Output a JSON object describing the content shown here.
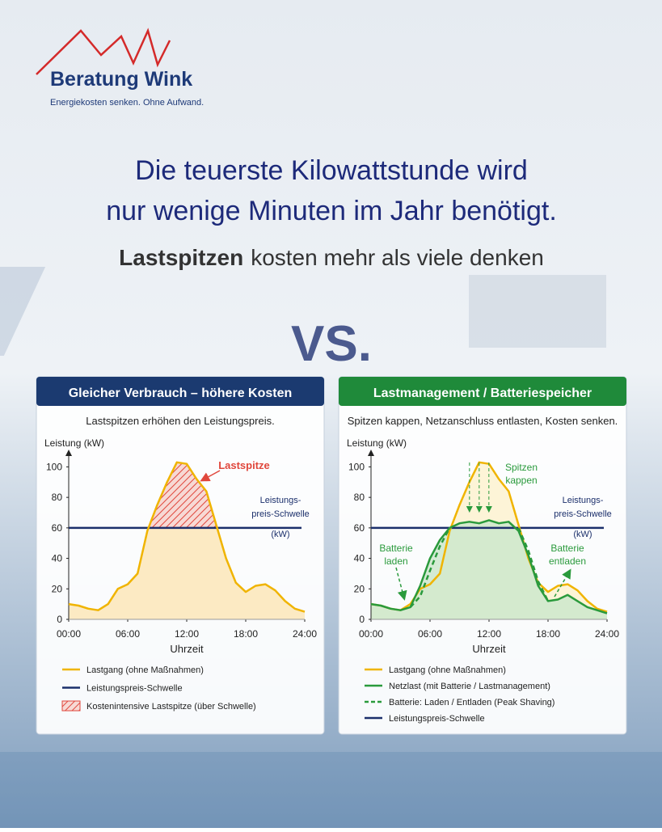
{
  "header": {
    "logo": "Beratung Wink",
    "tagline": "Energiekosten senken. Ohne Aufwand.",
    "headline": [
      "Die teuerste Kilowattstunde wird",
      "nur wenige Minuten im Jahr benötigt."
    ],
    "subheadline": {
      "bold": "Lastspitzen",
      "rest": "kosten mehr als viele denken"
    },
    "versus": "VS."
  },
  "chart_data": [
    {
      "type": "line",
      "title": "Gleicher Verbrauch – höhere Kosten",
      "subtitle": "Lastspitzen erhöhen den Leistungspreis.",
      "header_color": "#1b3a70",
      "y_label": "Leistung (kW)",
      "x_label": "Uhrzeit",
      "x": [
        0,
        1,
        2,
        3,
        4,
        5,
        6,
        7,
        8,
        9,
        10,
        11,
        12,
        13,
        14,
        15,
        16,
        17,
        18,
        19,
        20,
        21,
        22,
        23,
        24
      ],
      "xlim": [
        0,
        24
      ],
      "xticks": [
        {
          "value": 0,
          "label": "00:00"
        },
        {
          "value": 6,
          "label": "06:00"
        },
        {
          "value": 12,
          "label": "12:00"
        },
        {
          "value": 18,
          "label": "18:00"
        },
        {
          "value": 24,
          "label": "24:00"
        }
      ],
      "ylim": [
        0,
        105
      ],
      "yticks": [
        0,
        20,
        40,
        60,
        80,
        100
      ],
      "series": [
        {
          "name": "Lastgang (ohne Maßnahmen)",
          "color": "#f0b400",
          "fill": "#fbe6b8",
          "values": [
            10,
            9,
            7,
            6,
            10,
            20,
            23,
            30,
            58,
            75,
            90,
            103,
            102,
            92,
            84,
            62,
            40,
            24,
            18,
            22,
            23,
            19,
            12,
            7,
            5
          ]
        }
      ],
      "threshold": {
        "name": "Leistungspreis-Schwelle",
        "value": 60,
        "color": "#1b2f6b",
        "label": [
          "Leistungs-",
          "preis-Schwelle",
          "(kW)"
        ]
      },
      "peak_area": {
        "name": "Kostenintensive Lastspitze (über Schwelle)",
        "color": "#e0473c"
      },
      "annotations": [
        [
          "Lastspitze"
        ]
      ]
    },
    {
      "type": "line",
      "title": "Lastmanagement / Batteriespeicher",
      "subtitle": "Spitzen kappen, Netzanschluss entlasten, Kosten senken.",
      "header_color": "#1f8a3a",
      "y_label": "Leistung (kW)",
      "x_label": "Uhrzeit",
      "x": [
        0,
        1,
        2,
        3,
        4,
        5,
        6,
        7,
        8,
        9,
        10,
        11,
        12,
        13,
        14,
        15,
        16,
        17,
        18,
        19,
        20,
        21,
        22,
        23,
        24
      ],
      "xlim": [
        0,
        24
      ],
      "xticks": [
        {
          "value": 0,
          "label": "00:00"
        },
        {
          "value": 6,
          "label": "06:00"
        },
        {
          "value": 12,
          "label": "12:00"
        },
        {
          "value": 18,
          "label": "18:00"
        },
        {
          "value": 24,
          "label": "24:00"
        }
      ],
      "ylim": [
        0,
        105
      ],
      "yticks": [
        0,
        20,
        40,
        60,
        80,
        100
      ],
      "series": [
        {
          "name": "Lastgang (ohne Maßnahmen)",
          "color": "#f0b400",
          "fill": "#fdf2d0",
          "values": [
            10,
            9,
            7,
            6,
            10,
            20,
            23,
            30,
            58,
            75,
            90,
            103,
            102,
            92,
            84,
            62,
            40,
            24,
            18,
            22,
            23,
            19,
            12,
            7,
            5
          ]
        },
        {
          "name": "Netzlast (mit Batterie / Lastmanagement)",
          "color": "#2a9a3c",
          "fill": "#cde8cc",
          "values": [
            10,
            9,
            7,
            6,
            8,
            22,
            40,
            52,
            60,
            63,
            64,
            63,
            65,
            63,
            64,
            58,
            42,
            22,
            12,
            13,
            16,
            12,
            8,
            6,
            4
          ]
        },
        {
          "name": "Batterie: Laden / Entladen (Peak Shaving)",
          "color": "#2a9a3c",
          "dashed": true,
          "values": [
            null,
            null,
            null,
            null,
            8,
            15,
            32,
            48,
            60,
            null,
            null,
            null,
            null,
            null,
            null,
            60,
            45,
            25,
            12,
            null,
            null,
            null,
            null,
            null,
            null
          ]
        }
      ],
      "threshold": {
        "name": "Leistungspreis-Schwelle",
        "value": 60,
        "color": "#1b2f6b",
        "label": [
          "Leistungs-",
          "preis-Schwelle",
          "(kW)"
        ]
      },
      "annotations": [
        [
          "Spitzen",
          "kappen"
        ],
        [
          "Batterie",
          "laden"
        ],
        [
          "Batterie",
          "entladen"
        ]
      ]
    }
  ]
}
